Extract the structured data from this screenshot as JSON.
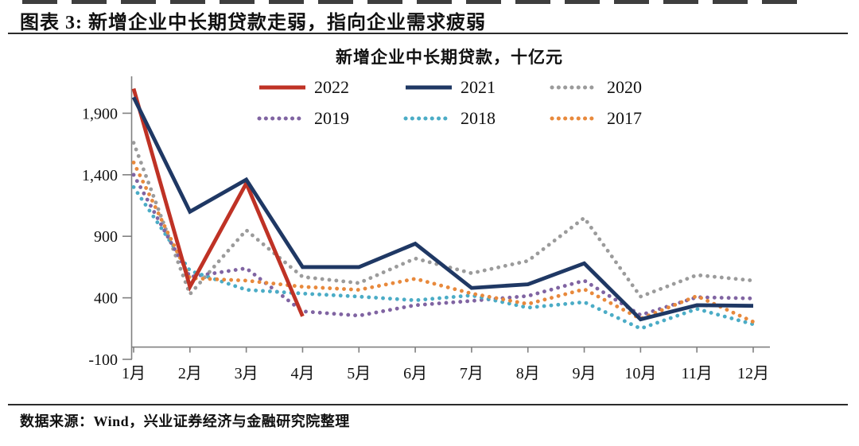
{
  "page": {
    "heading": "图表 3: 新增企业中长期贷款走弱，指向企业需求疲弱",
    "footer": "数据来源：Wind，兴业证券经济与金融研究院整理"
  },
  "chart_data": {
    "type": "line",
    "title": "新增企业中长期贷款，十亿元",
    "xlabel": "",
    "ylabel": "",
    "categories": [
      "1月",
      "2月",
      "3月",
      "4月",
      "5月",
      "6月",
      "7月",
      "8月",
      "9月",
      "10月",
      "11月",
      "12月"
    ],
    "series": [
      {
        "name": "2020",
        "color": "#9B9B9B",
        "style": "dotted",
        "values": [
          1660,
          430,
          950,
          570,
          520,
          720,
          600,
          700,
          1050,
          410,
          585,
          540
        ]
      },
      {
        "name": "2019",
        "color": "#8064A2",
        "style": "dotted",
        "values": [
          1400,
          570,
          640,
          290,
          255,
          340,
          375,
          415,
          540,
          260,
          405,
          395
        ]
      },
      {
        "name": "2018",
        "color": "#4BACC6",
        "style": "dotted",
        "values": [
          1300,
          620,
          465,
          435,
          410,
          380,
          420,
          320,
          365,
          150,
          310,
          185
        ]
      },
      {
        "name": "2017",
        "color": "#E8893C",
        "style": "dotted",
        "values": [
          1500,
          560,
          540,
          490,
          465,
          555,
          435,
          350,
          470,
          230,
          415,
          205
        ]
      },
      {
        "name": "2022",
        "color": "#BF3225",
        "style": "solid",
        "values": [
          2100,
          490,
          1330,
          250,
          null,
          null,
          null,
          null,
          null,
          null,
          null,
          null
        ]
      },
      {
        "name": "2021",
        "color": "#1F3864",
        "style": "solid",
        "values": [
          2030,
          1100,
          1360,
          650,
          650,
          840,
          480,
          510,
          680,
          225,
          340,
          335
        ]
      }
    ],
    "legend_rows": [
      [
        "2022",
        "2021",
        "2020"
      ],
      [
        "2019",
        "2018",
        "2017"
      ]
    ],
    "y_ticks": [
      {
        "v": -100,
        "label": "-100"
      },
      {
        "v": 400,
        "label": "400"
      },
      {
        "v": 900,
        "label": "900"
      },
      {
        "v": 1400,
        "label": "1,400"
      },
      {
        "v": 1900,
        "label": "1,900"
      }
    ],
    "ylim": [
      -100,
      2200
    ],
    "axis_color": "#808080",
    "grid": false,
    "legend_position": "top-center"
  }
}
